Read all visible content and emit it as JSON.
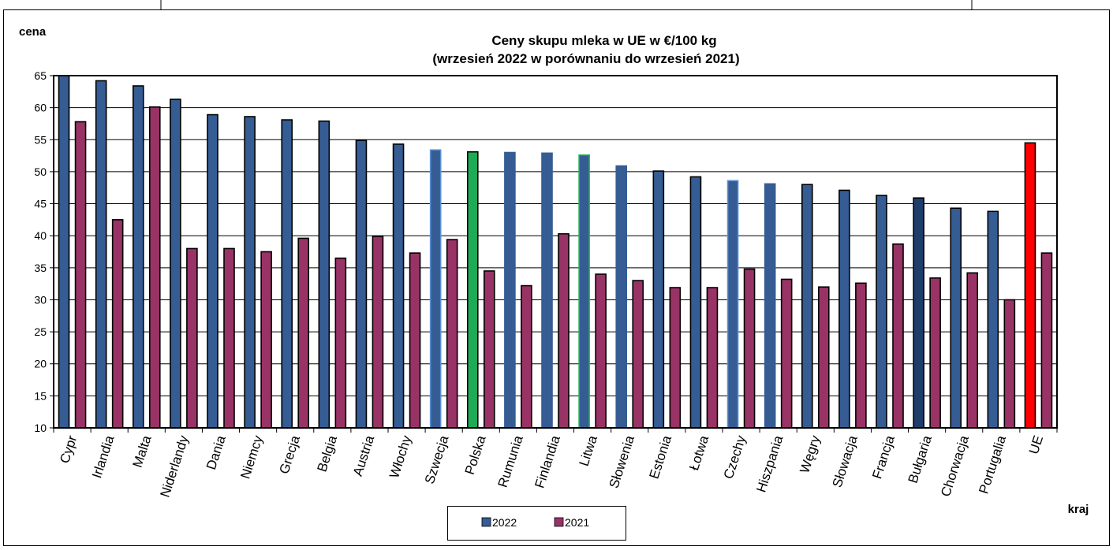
{
  "chart_data": {
    "type": "bar",
    "title": "Ceny skupu mleka  w UE w €/100 kg",
    "subtitle": "(wrzesień 2022  w porównaniu do wrzesień 2021)",
    "ylabel": "cena",
    "xlabel": "kraj",
    "ylim": [
      10,
      65
    ],
    "yticks": [
      10,
      15,
      20,
      25,
      30,
      35,
      40,
      45,
      50,
      55,
      60,
      65
    ],
    "grid": true,
    "legend_position": "bottom-center",
    "categories": [
      "Cypr",
      "Irlandia",
      "Malta",
      "Niderlandy",
      "Dania",
      "Niemcy",
      "Grecja",
      "Belgia",
      "Austria",
      "Włochy",
      "Szwecja",
      "Polska",
      "Rumunia",
      "Finlandia",
      "Litwa",
      "Słowenia",
      "Estonia",
      "Łotwa",
      "Czechy",
      "Hiszpania",
      "Węgry",
      "Słowacja",
      "Francja",
      "Bułgaria",
      "Chorwacja",
      "Portugalia",
      "UE"
    ],
    "series": [
      {
        "name": "2022",
        "color": "#355C93",
        "values": [
          65.0,
          64.2,
          63.4,
          61.3,
          58.9,
          58.6,
          58.1,
          57.9,
          54.9,
          54.3,
          53.4,
          53.1,
          53.0,
          52.9,
          52.6,
          50.9,
          50.1,
          49.2,
          48.6,
          48.1,
          48.0,
          47.1,
          46.3,
          45.9,
          44.3,
          43.8,
          54.5
        ],
        "highlights": {
          "Szwecja": {
            "fill": "#355C93",
            "stroke": "#5B8FD4"
          },
          "Polska": {
            "fill": "#1FAA55",
            "stroke": "#000000"
          },
          "Rumunia": {
            "fill": "#355C93",
            "stroke": "#355C93"
          },
          "Finlandia": {
            "fill": "#355C93",
            "stroke": "#355C93"
          },
          "Litwa": {
            "fill": "#355C93",
            "stroke": "#22B14C"
          },
          "Słowenia": {
            "fill": "#355C93",
            "stroke": "#355C93"
          },
          "Czechy": {
            "fill": "#355C93",
            "stroke": "#5B8FD4"
          },
          "Hiszpania": {
            "fill": "#355C93",
            "stroke": "#355C93"
          },
          "Bułgaria": {
            "fill": "#1F3D6B",
            "stroke": "#000000"
          },
          "UE": {
            "fill": "#FF0000",
            "stroke": "#000000"
          }
        }
      },
      {
        "name": "2021",
        "color": "#993366",
        "values": [
          57.8,
          42.5,
          60.1,
          38.0,
          38.0,
          37.5,
          39.6,
          36.5,
          39.9,
          37.3,
          39.4,
          34.5,
          32.2,
          40.3,
          34.0,
          33.0,
          31.9,
          31.9,
          34.8,
          33.2,
          32.0,
          32.6,
          38.7,
          33.4,
          34.2,
          30.0,
          37.3
        ]
      }
    ]
  }
}
